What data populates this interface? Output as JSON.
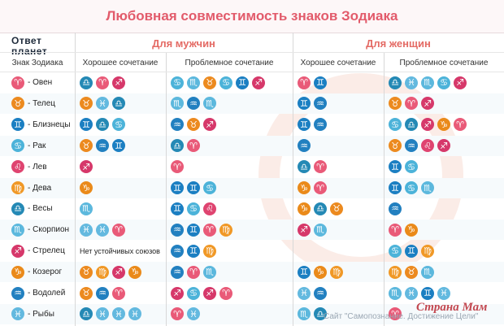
{
  "title": "Любовная совместимость знаков Зодиака",
  "logo": {
    "line1": "Ответ",
    "line2": "планет"
  },
  "sections": {
    "men": "Для мужчин",
    "women": "Для женщин"
  },
  "columns": {
    "sign": "Знак Зодиака",
    "men_good": "Хорошее сочетание",
    "men_bad": "Проблемное сочетание",
    "women_good": "Хорошее сочетание",
    "women_bad": "Проблемное сочетание"
  },
  "colors": {
    "Овен": "#e95a78",
    "Телец": "#ec8a1f",
    "Близнецы": "#1b7fc2",
    "Рак": "#4cb3d9",
    "Лев": "#df4470",
    "Дева": "#f09826",
    "Весы": "#2489b5",
    "Скорпион": "#5cb8dd",
    "Стрелец": "#d6386a",
    "Козерог": "#ea8a1a",
    "Водолей": "#2280c0",
    "Рыбы": "#63b9df"
  },
  "icons": {
    "Овен": "♈",
    "Телец": "♉",
    "Близнецы": "♊",
    "Рак": "♋",
    "Лев": "♌",
    "Дева": "♍",
    "Весы": "♎",
    "Скорпион": "♏",
    "Стрелец": "♐",
    "Козерог": "♑",
    "Водолей": "♒",
    "Рыбы": "♓"
  },
  "rows": [
    {
      "sign": "Овен",
      "label": "- Овен",
      "men_good": [
        "Весы",
        "Овен",
        "Стрелец"
      ],
      "men_text": "",
      "men_bad": [
        "Рак",
        "Скорпион",
        "Телец",
        "Рак",
        "Близнецы",
        "Стрелец"
      ],
      "women_good": [
        "Овен",
        "Близнецы"
      ],
      "women_bad": [
        "Весы",
        "Рыбы",
        "Скорпион",
        "Рак",
        "Стрелец"
      ]
    },
    {
      "sign": "Телец",
      "label": "- Телец",
      "men_good": [
        "Телец",
        "Рыбы",
        "Весы"
      ],
      "men_text": "",
      "men_bad": [
        "Скорпион",
        "Водолей",
        "Скорпион"
      ],
      "women_good": [
        "Близнецы",
        "Водолей"
      ],
      "women_bad": [
        "Телец",
        "Овен",
        "Стрелец"
      ]
    },
    {
      "sign": "Близнецы",
      "label": "- Близнецы",
      "men_good": [
        "Близнецы",
        "Весы",
        "Рак"
      ],
      "men_text": "",
      "men_bad": [
        "Водолей",
        "Телец",
        "Стрелец"
      ],
      "women_good": [
        "Близнецы",
        "Водолей"
      ],
      "women_bad": [
        "Рак",
        "Весы",
        "Стрелец",
        "Козерог",
        "Овен"
      ]
    },
    {
      "sign": "Рак",
      "label": "- Рак",
      "men_good": [
        "Телец",
        "Водолей",
        "Близнецы"
      ],
      "men_text": "",
      "men_bad": [
        "Весы",
        "Овен"
      ],
      "women_good": [
        "Водолей"
      ],
      "women_bad": [
        "Телец",
        "Водолей",
        "Лев",
        "Стрелец"
      ]
    },
    {
      "sign": "Лев",
      "label": "- Лев",
      "men_good": [
        "Стрелец"
      ],
      "men_text": "",
      "men_bad": [
        "Овен"
      ],
      "women_good": [
        "Весы",
        "Овен"
      ],
      "women_bad": [
        "Близнецы",
        "Рак"
      ]
    },
    {
      "sign": "Дева",
      "label": "- Дева",
      "men_good": [
        "Козерог"
      ],
      "men_text": "",
      "men_bad": [
        "Близнецы",
        "Близнецы",
        "Рак"
      ],
      "women_good": [
        "Козерог",
        "Овен"
      ],
      "women_bad": [
        "Близнецы",
        "Рак",
        "Скорпион"
      ]
    },
    {
      "sign": "Весы",
      "label": "- Весы",
      "men_good": [
        "Скорпион"
      ],
      "men_text": "",
      "men_bad": [
        "Близнецы",
        "Рак",
        "Лев"
      ],
      "women_good": [
        "Козерог",
        "Весы",
        "Телец"
      ],
      "women_bad": [
        "Водолей"
      ]
    },
    {
      "sign": "Скорпион",
      "label": "- Скорпион",
      "men_good": [
        "Рыбы",
        "Рыбы",
        "Овен"
      ],
      "men_text": "",
      "men_bad": [
        "Водолей",
        "Близнецы",
        "Овен",
        "Дева"
      ],
      "women_good": [
        "Стрелец",
        "Скорпион"
      ],
      "women_bad": [
        "Овен",
        "Козерог"
      ]
    },
    {
      "sign": "Стрелец",
      "label": "- Стрелец",
      "men_good": [],
      "men_text": "Нет устойчивых союзов",
      "men_bad": [
        "Водолей",
        "Близнецы",
        "Дева"
      ],
      "women_good": [],
      "women_bad": [
        "Рак",
        "Близнецы",
        "Дева"
      ]
    },
    {
      "sign": "Козерог",
      "label": "- Козерог",
      "men_good": [
        "Телец",
        "Дева",
        "Стрелец",
        "Козерог"
      ],
      "men_text": "",
      "men_bad": [
        "Водолей",
        "Овен",
        "Скорпион"
      ],
      "women_good": [
        "Близнецы",
        "Козерог",
        "Дева"
      ],
      "women_bad": [
        "Дева",
        "Телец",
        "Скорпион"
      ]
    },
    {
      "sign": "Водолей",
      "label": "- Водолей",
      "men_good": [
        "Телец",
        "Водолей",
        "Овен"
      ],
      "men_text": "",
      "men_bad": [
        "Стрелец",
        "Рак",
        "Стрелец",
        "Овен"
      ],
      "women_good": [
        "Рыбы",
        "Водолей"
      ],
      "women_bad": [
        "Скорпион",
        "Рыбы",
        "Близнецы",
        "Рыбы"
      ]
    },
    {
      "sign": "Рыбы",
      "label": "- Рыбы",
      "men_good": [
        "Весы",
        "Рыбы",
        "Рыбы",
        "Рыбы"
      ],
      "men_text": "",
      "men_bad": [
        "Овен",
        "Рыбы"
      ],
      "women_good": [
        "Скорпион",
        "Весы"
      ],
      "women_bad": [
        "Овен"
      ]
    }
  ],
  "footer": {
    "site": "Сайт \"Самопознание. Достижение Цели\"",
    "brand": "Страна Мам"
  }
}
